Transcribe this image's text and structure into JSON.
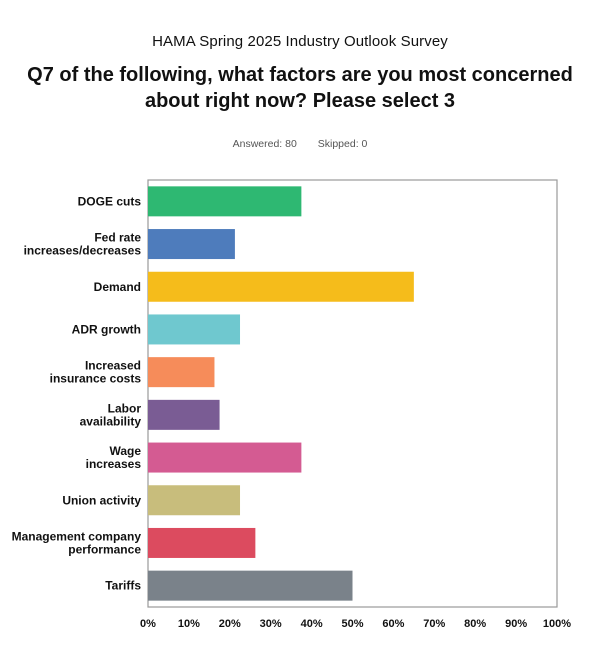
{
  "survey_title": "HAMA Spring 2025 Industry Outlook Survey",
  "question_line1": "Q7 of the following, what factors are you most concerned",
  "question_line2": "about right now? Please select 3",
  "answered": "Answered: 80",
  "skipped": "Skipped: 0",
  "chart_data": {
    "type": "bar",
    "orientation": "horizontal",
    "categories": [
      [
        "DOGE cuts"
      ],
      [
        "Fed rate",
        "increases/decreases"
      ],
      [
        "Demand"
      ],
      [
        "ADR growth"
      ],
      [
        "Increased",
        "insurance costs"
      ],
      [
        "Labor",
        "availability"
      ],
      [
        "Wage",
        "increases"
      ],
      [
        "Union activity"
      ],
      [
        "Management company",
        "performance"
      ],
      [
        "Tariffs"
      ]
    ],
    "values": [
      37.5,
      21.25,
      65,
      22.5,
      16.25,
      17.5,
      37.5,
      22.5,
      26.25,
      50
    ],
    "colors": [
      "#2eb872",
      "#4e7cbc",
      "#f5bc1b",
      "#6fc8cf",
      "#f68c5a",
      "#7a5c94",
      "#d45b92",
      "#c8bd7c",
      "#dc4b5f",
      "#7a828a"
    ],
    "xlim": [
      0,
      100
    ],
    "ticks": [
      "0%",
      "10%",
      "20%",
      "30%",
      "40%",
      "50%",
      "60%",
      "70%",
      "80%",
      "90%",
      "100%"
    ],
    "grid": false
  }
}
